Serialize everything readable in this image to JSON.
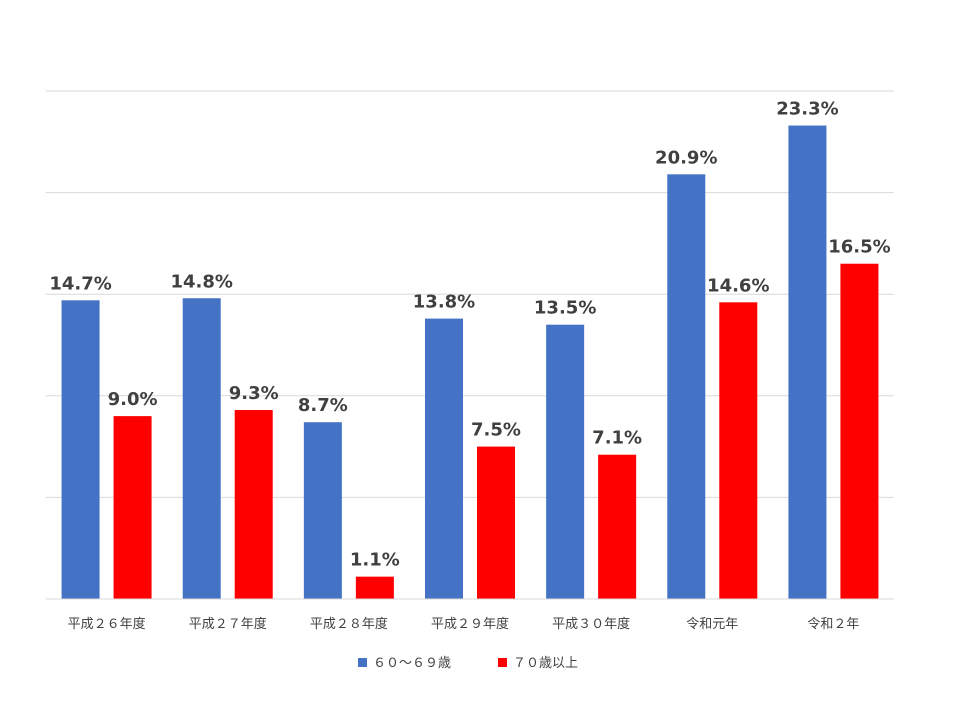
{
  "chart_data": {
    "type": "bar",
    "categories": [
      "平成２６年度",
      "平成２７年度",
      "平成２８年度",
      "平成２９年度",
      "平成３０年度",
      "令和元年",
      "令和２年"
    ],
    "series": [
      {
        "name": "６０～６９歳",
        "color": "#4472c4",
        "values": [
          14.7,
          14.8,
          8.7,
          13.8,
          13.5,
          20.9,
          23.3
        ],
        "labels": [
          "14.7%",
          "14.8%",
          "8.7%",
          "13.8%",
          "13.5%",
          "20.9%",
          "23.3%"
        ]
      },
      {
        "name": "７０歳以上",
        "color": "#ff0000",
        "values": [
          9.0,
          9.3,
          1.1,
          7.5,
          7.1,
          14.6,
          16.5
        ],
        "labels": [
          "9.0%",
          "9.3%",
          "1.1%",
          "7.5%",
          "7.1%",
          "14.6%",
          "16.5%"
        ]
      }
    ],
    "ylim": [
      0,
      25
    ],
    "grid": true,
    "legend_position": "bottom"
  }
}
